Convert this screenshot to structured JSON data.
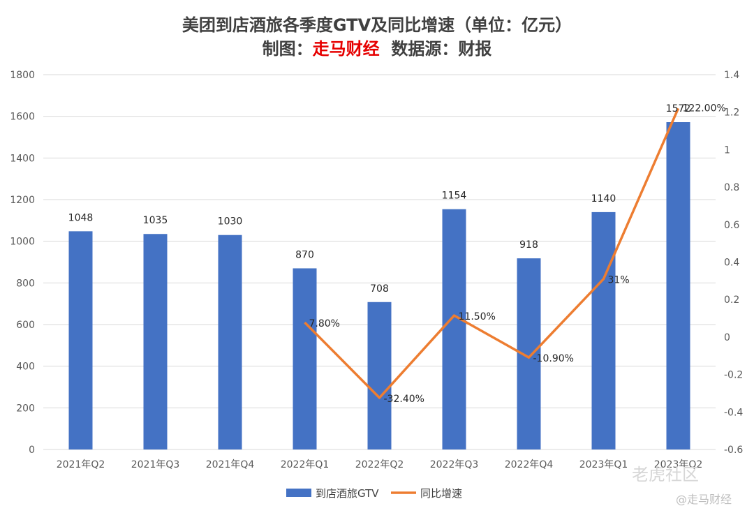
{
  "title": {
    "line1": "美团到店酒旅各季度GTV及同比增速（单位：亿元）",
    "line2_prefix": "制图：",
    "line2_highlight": "走马财经",
    "line2_suffix": "  数据源：财报"
  },
  "colors": {
    "bar": "#4472c4",
    "line": "#ed7d31",
    "grid": "#d9d9d9",
    "highlight": "#e60000"
  },
  "watermarks": {
    "site": "老虎社区",
    "account": "@走马财经"
  },
  "chart_data": {
    "type": "bar+line",
    "categories": [
      "2021年Q2",
      "2021年Q3",
      "2021年Q4",
      "2022年Q1",
      "2022年Q2",
      "2022年Q3",
      "2022年Q4",
      "2023年Q1",
      "2023年Q2"
    ],
    "series": [
      {
        "name": "到店酒旅GTV",
        "type": "bar",
        "axis": "left",
        "values": [
          1048,
          1035,
          1030,
          870,
          708,
          1154,
          918,
          1140,
          1572
        ],
        "labels": [
          "1048",
          "1035",
          "1030",
          "870",
          "708",
          "1154",
          "918",
          "1140",
          "1572"
        ]
      },
      {
        "name": "同比增速",
        "type": "line",
        "axis": "right",
        "values": [
          null,
          null,
          null,
          0.078,
          -0.324,
          0.115,
          -0.109,
          0.31,
          1.22
        ],
        "labels": [
          null,
          null,
          null,
          "7.80%",
          "-32.40%",
          "11.50%",
          "-10.90%",
          "31%",
          "122.00%"
        ]
      }
    ],
    "y_left": {
      "min": 0,
      "max": 1800,
      "ticks": [
        "0",
        "200",
        "400",
        "600",
        "800",
        "1000",
        "1200",
        "1400",
        "1600",
        "1800"
      ]
    },
    "y_right": {
      "min": -0.6,
      "max": 1.4,
      "ticks": [
        "-0.6",
        "-0.4",
        "-0.2",
        "0",
        "0.2",
        "0.4",
        "0.6",
        "0.8",
        "1",
        "1.2",
        "1.4"
      ]
    },
    "grid": true,
    "legend_position": "bottom"
  }
}
